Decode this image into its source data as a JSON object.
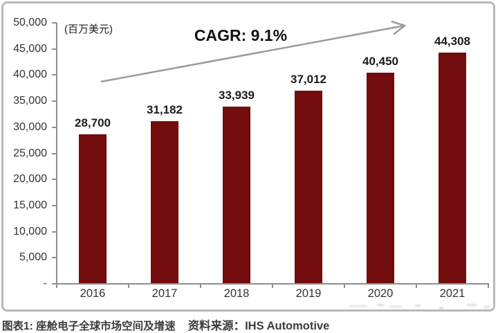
{
  "chart_data": {
    "type": "bar",
    "categories": [
      "2016",
      "2017",
      "2018",
      "2019",
      "2020",
      "2021"
    ],
    "values": [
      28700,
      31182,
      33939,
      37012,
      40450,
      44308
    ],
    "value_labels": [
      "28,700",
      "31,182",
      "33,939",
      "37,012",
      "40,450",
      "44,308"
    ],
    "annotation": "CAGR: 9.1%",
    "unit_label": "(百万美元)",
    "ylim": [
      0,
      50000
    ],
    "yticks": [
      {
        "label": "50,000",
        "value": 50000
      },
      {
        "label": "45,000",
        "value": 45000
      },
      {
        "label": "40,000",
        "value": 40000
      },
      {
        "label": "35,000",
        "value": 35000
      },
      {
        "label": "30,000",
        "value": 30000
      },
      {
        "label": "25,000",
        "value": 25000
      },
      {
        "label": "20,000",
        "value": 20000
      },
      {
        "label": "15,000",
        "value": 15000
      },
      {
        "label": "10,000",
        "value": 10000
      },
      {
        "label": "5,000",
        "value": 5000
      },
      {
        "label": "-",
        "value": 0
      }
    ],
    "bar_color": "#730c0c",
    "grid": false,
    "legend": "none"
  },
  "caption": {
    "title": "图表1: 座舱电子全球市场空间及增速",
    "source": "资料来源：IHS Automotive"
  }
}
